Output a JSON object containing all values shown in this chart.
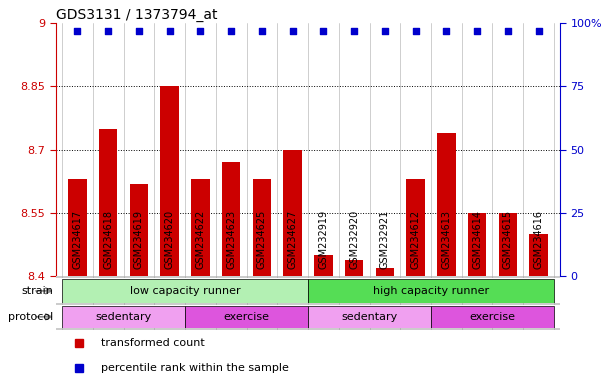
{
  "title": "GDS3131 / 1373794_at",
  "samples": [
    "GSM234617",
    "GSM234618",
    "GSM234619",
    "GSM234620",
    "GSM234622",
    "GSM234623",
    "GSM234625",
    "GSM234627",
    "GSM232919",
    "GSM232920",
    "GSM232921",
    "GSM234612",
    "GSM234613",
    "GSM234614",
    "GSM234615",
    "GSM234616"
  ],
  "bar_values": [
    8.63,
    8.75,
    8.62,
    8.85,
    8.63,
    8.67,
    8.63,
    8.7,
    8.45,
    8.44,
    8.42,
    8.63,
    8.74,
    8.55,
    8.55,
    8.5
  ],
  "percentile_values": [
    97,
    97,
    97,
    97,
    97,
    97,
    97,
    97,
    97,
    97,
    97,
    97,
    97,
    97,
    97,
    97
  ],
  "bar_color": "#cc0000",
  "percentile_color": "#0000cc",
  "ylim_left": [
    8.4,
    9.0
  ],
  "ylim_right": [
    0,
    100
  ],
  "yticks_left": [
    8.4,
    8.55,
    8.7,
    8.85,
    9.0
  ],
  "yticks_right": [
    0,
    25,
    50,
    75,
    100
  ],
  "ytick_labels_left": [
    "8.4",
    "8.55",
    "8.7",
    "8.85",
    "9"
  ],
  "ytick_labels_right": [
    "0",
    "25",
    "50",
    "75",
    "100%"
  ],
  "grid_values": [
    8.55,
    8.7,
    8.85
  ],
  "strain_row": {
    "groups": [
      {
        "label": "low capacity runner",
        "start": 0,
        "end": 7,
        "color": "#b3f0b3"
      },
      {
        "label": "high capacity runner",
        "start": 8,
        "end": 15,
        "color": "#55dd55"
      }
    ]
  },
  "protocol_row": {
    "groups": [
      {
        "label": "sedentary",
        "start": 0,
        "end": 3,
        "color": "#f0a0f0"
      },
      {
        "label": "exercise",
        "start": 4,
        "end": 7,
        "color": "#dd55dd"
      },
      {
        "label": "sedentary",
        "start": 8,
        "end": 11,
        "color": "#f0a0f0"
      },
      {
        "label": "exercise",
        "start": 12,
        "end": 15,
        "color": "#dd55dd"
      }
    ]
  },
  "legend_items": [
    {
      "color": "#cc0000",
      "label": "transformed count"
    },
    {
      "color": "#0000cc",
      "label": "percentile rank within the sample"
    }
  ],
  "bg_color": "#ffffff",
  "xticklabel_bg": "#cccccc",
  "separator_color": "#aaaaaa",
  "row_label_color": "#888888"
}
